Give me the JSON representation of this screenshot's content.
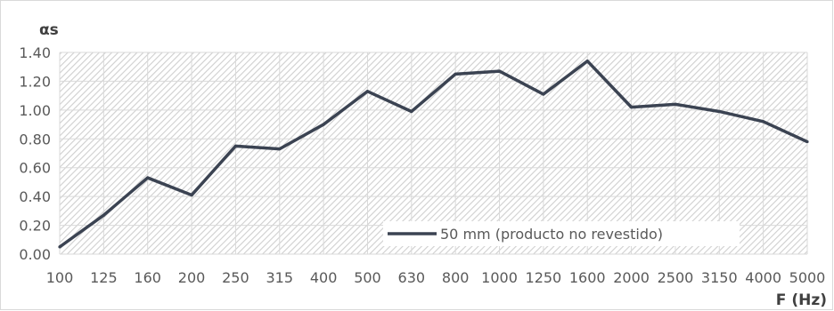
{
  "chart_data": {
    "type": "line",
    "ylabel": "αs",
    "xlabel": "F (Hz)",
    "categories": [
      "100",
      "125",
      "160",
      "200",
      "250",
      "315",
      "400",
      "500",
      "630",
      "800",
      "1000",
      "1250",
      "1600",
      "2000",
      "2500",
      "3150",
      "4000",
      "5000"
    ],
    "series": [
      {
        "name": "50 mm (producto no revestido)",
        "values": [
          0.05,
          0.27,
          0.53,
          0.41,
          0.75,
          0.73,
          0.9,
          1.13,
          0.99,
          1.25,
          1.27,
          1.11,
          1.34,
          1.02,
          1.04,
          0.99,
          0.92,
          0.78
        ],
        "color": "#3b4352"
      }
    ],
    "yticks": [
      "0.00",
      "0.20",
      "0.40",
      "0.60",
      "0.80",
      "1.00",
      "1.20",
      "1.40"
    ],
    "ylim": [
      0,
      1.4
    ],
    "grid": true,
    "legend_position": "inside-bottom-right",
    "plot_background": "hatched"
  }
}
